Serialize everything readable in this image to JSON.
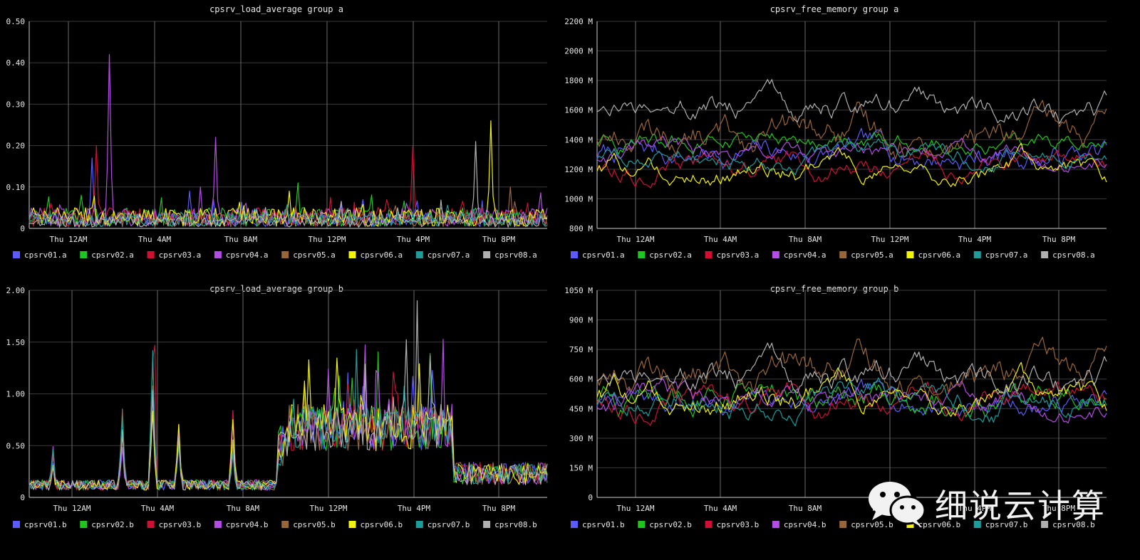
{
  "watermark": {
    "text": "细说云计算",
    "icon": "wechat-icon"
  },
  "time_ticks": [
    "Thu 12AM",
    "Thu  4AM",
    "Thu  8AM",
    "Thu 12PM",
    "Thu  4PM",
    "Thu  8PM"
  ],
  "chart_data": [
    {
      "id": "load_a",
      "type": "line",
      "title": "cpsrv_load_average group a",
      "ylim": [
        0,
        0.5
      ],
      "yticks": [
        0,
        0.1,
        0.2,
        0.3,
        0.4,
        0.5
      ],
      "ytick_labels": [
        "0",
        "0.10",
        "0.20",
        "0.30",
        "0.40",
        "0.50"
      ],
      "grid": true,
      "legend": "bottom",
      "series": [
        {
          "name": "cpsrv01.a",
          "color": "#5b5bff",
          "base": 0.02,
          "spikes": [
            [
              0.12,
              0.17
            ],
            [
              0.31,
              0.09
            ]
          ]
        },
        {
          "name": "cpsrv02.a",
          "color": "#22c422",
          "base": 0.025,
          "spikes": [
            [
              0.52,
              0.11
            ],
            [
              0.1,
              0.08
            ]
          ]
        },
        {
          "name": "cpsrv03.a",
          "color": "#cc1133",
          "base": 0.025,
          "spikes": [
            [
              0.13,
              0.2
            ],
            [
              0.74,
              0.2
            ]
          ]
        },
        {
          "name": "cpsrv04.a",
          "color": "#b44ce6",
          "base": 0.025,
          "spikes": [
            [
              0.155,
              0.42
            ],
            [
              0.36,
              0.22
            ],
            [
              0.33,
              0.1
            ]
          ]
        },
        {
          "name": "cpsrv05.a",
          "color": "#99663a",
          "base": 0.02,
          "spikes": [
            [
              0.93,
              0.1
            ]
          ]
        },
        {
          "name": "cpsrv06.a",
          "color": "#f2f20a",
          "base": 0.025,
          "spikes": [
            [
              0.89,
              0.26
            ],
            [
              0.5,
              0.09
            ]
          ]
        },
        {
          "name": "cpsrv07.a",
          "color": "#1e9b9b",
          "base": 0.02,
          "spikes": []
        },
        {
          "name": "cpsrv08.a",
          "color": "#b0b0b0",
          "base": 0.015,
          "spikes": [
            [
              0.86,
              0.21
            ]
          ]
        }
      ]
    },
    {
      "id": "mem_a",
      "type": "line",
      "title": "cpsrv_free_memory group a",
      "ylim": [
        800,
        2200
      ],
      "yticks": [
        800,
        1000,
        1200,
        1400,
        1600,
        1800,
        2000,
        2200
      ],
      "ytick_labels": [
        "800 M",
        "1000 M",
        "1200 M",
        "1400 M",
        "1600 M",
        "1800 M",
        "2000 M",
        "2200 M"
      ],
      "grid": true,
      "legend": "bottom",
      "series": [
        {
          "name": "cpsrv01.a",
          "color": "#5b5bff",
          "base": 1300,
          "amp": 180
        },
        {
          "name": "cpsrv02.a",
          "color": "#22c422",
          "base": 1380,
          "amp": 130
        },
        {
          "name": "cpsrv03.a",
          "color": "#cc1133",
          "base": 1230,
          "amp": 150
        },
        {
          "name": "cpsrv04.a",
          "color": "#b44ce6",
          "base": 1280,
          "amp": 130
        },
        {
          "name": "cpsrv05.a",
          "color": "#99663a",
          "base": 1420,
          "amp": 230
        },
        {
          "name": "cpsrv06.a",
          "color": "#f2f20a",
          "base": 1200,
          "amp": 150
        },
        {
          "name": "cpsrv07.a",
          "color": "#1e9b9b",
          "base": 1280,
          "amp": 130
        },
        {
          "name": "cpsrv08.a",
          "color": "#b0b0b0",
          "base": 1600,
          "amp": 170
        }
      ]
    },
    {
      "id": "load_b",
      "type": "line",
      "title": "cpsrv_load_average group b",
      "ylim": [
        0,
        2.0
      ],
      "yticks": [
        0,
        0.5,
        1.0,
        1.5,
        2.0
      ],
      "ytick_labels": [
        "0",
        "0.50",
        "1.00",
        "1.50",
        "2.00"
      ],
      "grid": true,
      "legend": "bottom",
      "series": [
        {
          "name": "cpsrv01.b",
          "color": "#5b5bff"
        },
        {
          "name": "cpsrv02.b",
          "color": "#22c422"
        },
        {
          "name": "cpsrv03.b",
          "color": "#cc1133"
        },
        {
          "name": "cpsrv04.b",
          "color": "#b44ce6"
        },
        {
          "name": "cpsrv05.b",
          "color": "#99663a"
        },
        {
          "name": "cpsrv06.b",
          "color": "#f2f20a"
        },
        {
          "name": "cpsrv07.b",
          "color": "#1e9b9b"
        },
        {
          "name": "cpsrv08.b",
          "color": "#b0b0b0"
        }
      ]
    },
    {
      "id": "mem_b",
      "type": "line",
      "title": "cpsrv_free_memory group b",
      "ylim": [
        0,
        1050
      ],
      "yticks": [
        0,
        150,
        300,
        450,
        600,
        750,
        900,
        1050
      ],
      "ytick_labels": [
        "0",
        "150 M",
        "300 M",
        "450 M",
        "600 M",
        "750 M",
        "900 M",
        "1050 M"
      ],
      "grid": true,
      "legend": "bottom",
      "series": [
        {
          "name": "cpsrv01.b",
          "color": "#5b5bff",
          "base": 480,
          "amp": 120
        },
        {
          "name": "cpsrv02.b",
          "color": "#22c422",
          "base": 500,
          "amp": 150
        },
        {
          "name": "cpsrv03.b",
          "color": "#cc1133",
          "base": 500,
          "amp": 130
        },
        {
          "name": "cpsrv04.b",
          "color": "#b44ce6",
          "base": 470,
          "amp": 120
        },
        {
          "name": "cpsrv05.b",
          "color": "#99663a",
          "base": 620,
          "amp": 180
        },
        {
          "name": "cpsrv06.b",
          "color": "#f2f20a",
          "base": 520,
          "amp": 140
        },
        {
          "name": "cpsrv07.b",
          "color": "#1e9b9b",
          "base": 480,
          "amp": 130
        },
        {
          "name": "cpsrv08.b",
          "color": "#b0b0b0",
          "base": 600,
          "amp": 150
        }
      ]
    }
  ]
}
